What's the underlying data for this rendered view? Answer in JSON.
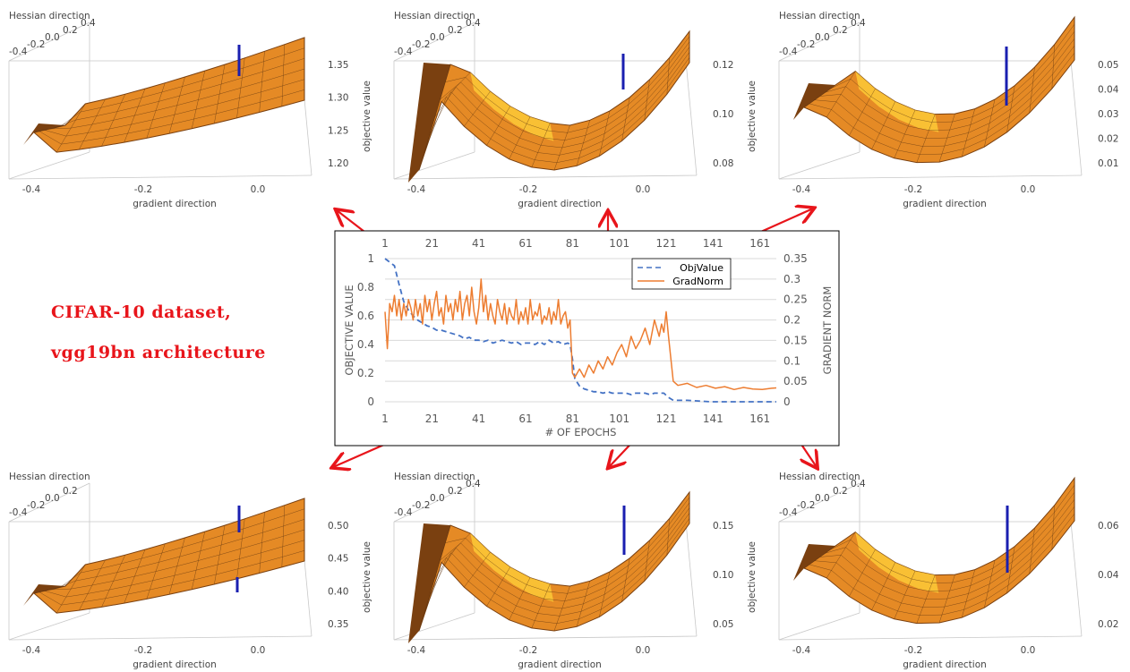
{
  "caption": {
    "line1": "CIFAR-10 dataset,",
    "line2": "vgg19bn architecture"
  },
  "colors": {
    "objvalue": "#4472c4",
    "gradnorm": "#ed7d31",
    "arrow": "#e8151b",
    "surface": "#e58a25",
    "surface_dark": "#7a4010",
    "surface_light": "#ffd23a",
    "stick": "#1a1fb0",
    "caption": "#e8151b"
  },
  "chart_data": [
    {
      "type": "line",
      "title": "",
      "xlabel": "# OF EPOCHS",
      "ylabel": "OBJECTIVE VALUE",
      "y2label": "GRADIENT NORM",
      "xticks": [
        1,
        21,
        41,
        61,
        81,
        101,
        121,
        141,
        161
      ],
      "xlim": [
        1,
        168
      ],
      "ylim": [
        0,
        1
      ],
      "yticks": [
        "0",
        "0.2",
        "0.4",
        "0.6",
        "0.8",
        "1"
      ],
      "y2lim": [
        0,
        0.35
      ],
      "y2ticks": [
        "0",
        "0.05",
        "0.1",
        "0.15",
        "0.2",
        "0.25",
        "0.3",
        "0.35"
      ],
      "grid": true,
      "legend_position": "top-right",
      "series": [
        {
          "name": "ObjValue",
          "axis": "left",
          "style": "dashed",
          "x": [
            1,
            5,
            7,
            9,
            11,
            13,
            15,
            17,
            19,
            21,
            23,
            25,
            27,
            29,
            31,
            33,
            35,
            37,
            39,
            41,
            43,
            45,
            47,
            49,
            51,
            53,
            55,
            57,
            59,
            61,
            63,
            65,
            67,
            69,
            71,
            73,
            75,
            77,
            79,
            80,
            81,
            82,
            84,
            86,
            88,
            90,
            92,
            94,
            96,
            98,
            100,
            102,
            104,
            106,
            108,
            110,
            112,
            114,
            116,
            118,
            120,
            122,
            124,
            126,
            130,
            140,
            150,
            160,
            168
          ],
          "values": [
            1.0,
            0.95,
            0.82,
            0.7,
            0.64,
            0.6,
            0.57,
            0.55,
            0.53,
            0.52,
            0.5,
            0.5,
            0.49,
            0.48,
            0.47,
            0.46,
            0.44,
            0.45,
            0.43,
            0.43,
            0.42,
            0.43,
            0.41,
            0.42,
            0.43,
            0.42,
            0.41,
            0.42,
            0.4,
            0.41,
            0.41,
            0.4,
            0.42,
            0.4,
            0.43,
            0.41,
            0.42,
            0.4,
            0.41,
            0.4,
            0.3,
            0.16,
            0.11,
            0.09,
            0.08,
            0.07,
            0.07,
            0.06,
            0.07,
            0.06,
            0.06,
            0.06,
            0.06,
            0.05,
            0.06,
            0.06,
            0.06,
            0.05,
            0.06,
            0.06,
            0.06,
            0.03,
            0.01,
            0.01,
            0.01,
            0.0,
            0.0,
            0.0,
            0.0
          ]
        },
        {
          "name": "GradNorm",
          "axis": "right",
          "style": "solid",
          "x": [
            1,
            2,
            3,
            4,
            5,
            6,
            7,
            8,
            9,
            10,
            11,
            12,
            13,
            14,
            15,
            16,
            17,
            18,
            19,
            20,
            21,
            22,
            23,
            24,
            25,
            26,
            27,
            28,
            29,
            30,
            31,
            32,
            33,
            34,
            35,
            36,
            37,
            38,
            39,
            40,
            41,
            42,
            43,
            44,
            45,
            46,
            47,
            48,
            49,
            50,
            51,
            52,
            53,
            54,
            55,
            56,
            57,
            58,
            59,
            60,
            61,
            62,
            63,
            64,
            65,
            66,
            67,
            68,
            69,
            70,
            71,
            72,
            73,
            74,
            75,
            76,
            77,
            78,
            79,
            80,
            81,
            82,
            83,
            84,
            86,
            88,
            90,
            92,
            94,
            96,
            98,
            100,
            102,
            104,
            106,
            108,
            110,
            112,
            114,
            116,
            118,
            119,
            120,
            121,
            122,
            124,
            126,
            130,
            134,
            138,
            142,
            146,
            150,
            154,
            158,
            162,
            166,
            168
          ],
          "values": [
            0.22,
            0.13,
            0.24,
            0.22,
            0.26,
            0.21,
            0.25,
            0.2,
            0.24,
            0.21,
            0.25,
            0.23,
            0.2,
            0.25,
            0.21,
            0.24,
            0.19,
            0.26,
            0.22,
            0.25,
            0.2,
            0.24,
            0.27,
            0.21,
            0.23,
            0.19,
            0.26,
            0.22,
            0.24,
            0.2,
            0.25,
            0.22,
            0.27,
            0.2,
            0.24,
            0.26,
            0.21,
            0.28,
            0.22,
            0.19,
            0.23,
            0.3,
            0.22,
            0.26,
            0.2,
            0.24,
            0.21,
            0.19,
            0.25,
            0.22,
            0.2,
            0.24,
            0.19,
            0.23,
            0.21,
            0.2,
            0.25,
            0.19,
            0.22,
            0.2,
            0.23,
            0.19,
            0.25,
            0.2,
            0.22,
            0.21,
            0.24,
            0.19,
            0.21,
            0.2,
            0.23,
            0.19,
            0.22,
            0.2,
            0.25,
            0.19,
            0.21,
            0.22,
            0.18,
            0.2,
            0.07,
            0.06,
            0.07,
            0.08,
            0.06,
            0.09,
            0.07,
            0.1,
            0.08,
            0.11,
            0.09,
            0.12,
            0.14,
            0.11,
            0.16,
            0.13,
            0.15,
            0.18,
            0.14,
            0.2,
            0.16,
            0.19,
            0.17,
            0.22,
            0.16,
            0.05,
            0.04,
            0.045,
            0.035,
            0.04,
            0.033,
            0.037,
            0.03,
            0.035,
            0.031,
            0.03,
            0.033,
            0.034
          ]
        }
      ]
    },
    {
      "type": "surface3d",
      "xlabel": "gradient direction",
      "ylabel": "Hessian direction",
      "zlabel": "objective value",
      "xticks": [
        "-0.4",
        "-0.2",
        "0.0"
      ],
      "yticks": [
        "-0.4",
        "-0.2",
        "0.0",
        "0.2",
        "0.4"
      ],
      "zticks": [
        "1.20",
        "1.25",
        "1.30",
        "1.35"
      ]
    },
    {
      "type": "surface3d",
      "xlabel": "gradient direction",
      "ylabel": "Hessian direction",
      "zlabel": "objective value",
      "xticks": [
        "-0.4",
        "-0.2",
        "0.0"
      ],
      "yticks": [
        "-0.4",
        "-0.2",
        "0.0",
        "0.2",
        "0.4"
      ],
      "zticks": [
        "0.08",
        "0.10",
        "0.12"
      ]
    },
    {
      "type": "surface3d",
      "xlabel": "gradient direction",
      "ylabel": "Hessian direction",
      "zlabel": "objective value",
      "xticks": [
        "-0.4",
        "-0.2",
        "0.0"
      ],
      "yticks": [
        "-0.4",
        "-0.2",
        "0.0",
        "0.2",
        "0.4"
      ],
      "zticks": [
        "0.01",
        "0.02",
        "0.03",
        "0.04",
        "0.05"
      ]
    },
    {
      "type": "surface3d",
      "xlabel": "gradient direction",
      "ylabel": "Hessian direction",
      "zlabel": "objective value",
      "xticks": [
        "-0.4",
        "-0.2",
        "0.0"
      ],
      "yticks": [
        "-0.4",
        "-0.2",
        "0.0",
        "0.2"
      ],
      "zticks": [
        "0.35",
        "0.40",
        "0.45",
        "0.50"
      ]
    },
    {
      "type": "surface3d",
      "xlabel": "gradient direction",
      "ylabel": "Hessian direction",
      "zlabel": "objective value",
      "xticks": [
        "-0.4",
        "-0.2",
        "0.0"
      ],
      "yticks": [
        "-0.4",
        "-0.2",
        "0.0",
        "0.2",
        "0.4"
      ],
      "zticks": [
        "0.05",
        "0.10",
        "0.15"
      ]
    },
    {
      "type": "surface3d",
      "xlabel": "gradient direction",
      "ylabel": "Hessian direction",
      "zlabel": "objective value",
      "xticks": [
        "-0.4",
        "-0.2",
        "0.0"
      ],
      "yticks": [
        "-0.4",
        "-0.2",
        "0.0",
        "0.2",
        "0.4"
      ],
      "zticks": [
        "0.02",
        "0.04",
        "0.06"
      ]
    }
  ]
}
